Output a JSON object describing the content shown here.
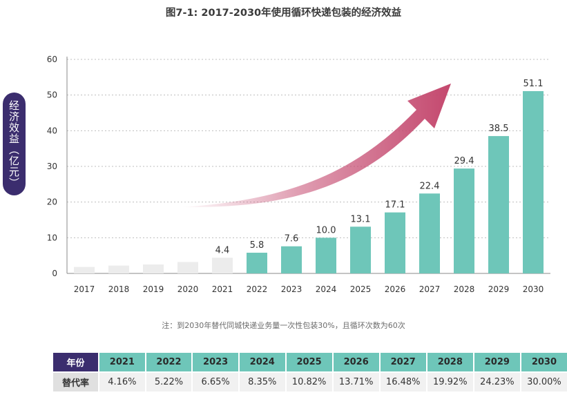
{
  "chart_data": {
    "type": "bar",
    "title": "图7-1: 2017-2030年使用循环快递包装的经济效益",
    "ylabel": "经济效益（亿元）",
    "xlabel": "",
    "ylim": [
      0,
      60
    ],
    "yticks": [
      0,
      10,
      20,
      30,
      40,
      50,
      60
    ],
    "grid": true,
    "categories": [
      "2017",
      "2018",
      "2019",
      "2020",
      "2021",
      "2022",
      "2023",
      "2024",
      "2025",
      "2026",
      "2027",
      "2028",
      "2029",
      "2030"
    ],
    "values": [
      1.8,
      2.2,
      2.5,
      3.2,
      4.4,
      5.8,
      7.6,
      10.0,
      13.1,
      17.1,
      22.4,
      29.4,
      38.5,
      51.1
    ],
    "labels": [
      "",
      "",
      "",
      "",
      "4.4",
      "5.8",
      "7.6",
      "10.0",
      "13.1",
      "17.1",
      "22.4",
      "29.4",
      "38.5",
      "51.1"
    ],
    "colors": {
      "past": "#ececec",
      "future": "#6ec6b9",
      "arrow": "#c4486e",
      "grid": "#bdbdbd",
      "text": "#333333"
    }
  },
  "note": "注：到2030年替代同城快递业务量一次性包装30%，且循环次数为60次",
  "table": {
    "header_label": "年份",
    "row_label": "替代率",
    "years": [
      "2021",
      "2022",
      "2023",
      "2024",
      "2025",
      "2026",
      "2027",
      "2028",
      "2029",
      "2030"
    ],
    "rates": [
      "4.16%",
      "5.22%",
      "6.65%",
      "8.35%",
      "10.82%",
      "13.71%",
      "16.48%",
      "19.92%",
      "24.23%",
      "30.00%"
    ]
  }
}
